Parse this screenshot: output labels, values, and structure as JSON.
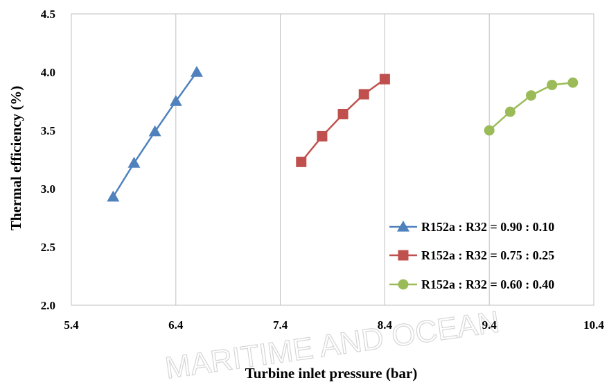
{
  "chart_data": {
    "type": "line",
    "xlabel": "Turbine  inlet pressure (bar)",
    "ylabel": "Thermal  efficiency (%)",
    "xlim": [
      5.4,
      10.4
    ],
    "ylim": [
      2.0,
      4.5
    ],
    "xticks": [
      5.4,
      6.4,
      7.4,
      8.4,
      9.4,
      10.4
    ],
    "yticks": [
      2.0,
      2.5,
      3.0,
      3.5,
      4.0,
      4.5
    ],
    "xtick_labels": [
      "5.4",
      "6.4",
      "7.4",
      "8.4",
      "9.4",
      "10.4"
    ],
    "ytick_labels": [
      "2.0",
      "2.5",
      "3.0",
      "3.5",
      "4.0",
      "4.5"
    ],
    "grid": "vertical",
    "legend_position": "bottom-right",
    "series": [
      {
        "name": "R152a : R32 = 0.90 : 0.10",
        "color": "#4f81bd",
        "marker": "triangle",
        "x": [
          5.8,
          6.0,
          6.2,
          6.4,
          6.6
        ],
        "y": [
          2.93,
          3.22,
          3.49,
          3.75,
          4.0
        ]
      },
      {
        "name": "R152a : R32 = 0.75 : 0.25",
        "color": "#c0504d",
        "marker": "square",
        "x": [
          7.6,
          7.8,
          8.0,
          8.2,
          8.4
        ],
        "y": [
          3.23,
          3.45,
          3.64,
          3.81,
          3.94
        ]
      },
      {
        "name": "R152a : R32 = 0.60 : 0.40",
        "color": "#9bbb59",
        "marker": "circle",
        "x": [
          9.4,
          9.6,
          9.8,
          10.0,
          10.2
        ],
        "y": [
          3.5,
          3.66,
          3.8,
          3.89,
          3.91
        ]
      }
    ]
  },
  "watermark_text": "MARITIME AND OCEAN"
}
